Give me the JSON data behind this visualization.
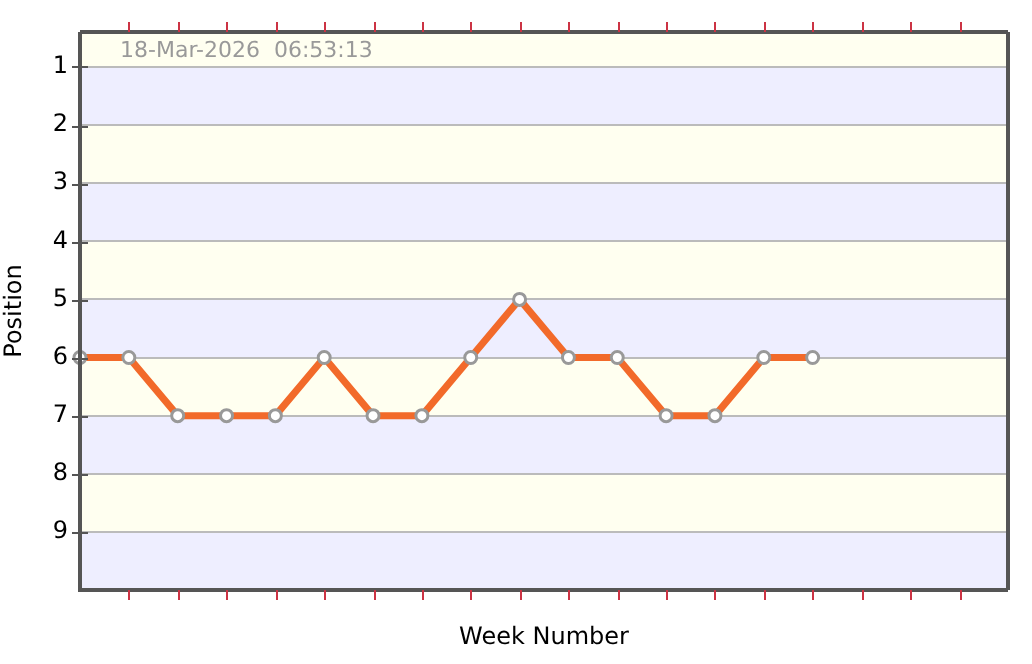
{
  "chart_data": {
    "type": "line",
    "xlabel": "Week Number",
    "ylabel": "Position",
    "annotations": [
      "18-Mar-2026  06:53:13"
    ],
    "categories": [
      null,
      null,
      null,
      null,
      null,
      null,
      null,
      null,
      null,
      null,
      null,
      null,
      null,
      null,
      null,
      null,
      null,
      null,
      null,
      null
    ],
    "series": [
      {
        "color": "#f26a2a",
        "values": [
          6,
          6,
          7,
          7,
          7,
          6,
          7,
          7,
          6,
          5,
          6,
          6,
          7,
          7,
          6,
          6,
          null,
          null,
          null,
          null
        ]
      }
    ],
    "ylim": [
      10,
      0.4
    ],
    "yticks": [
      1,
      2,
      3,
      4,
      5,
      6,
      7,
      8,
      9
    ],
    "tick_labels": "y",
    "grid": "y",
    "legend": false,
    "marker": "circle",
    "line_style": "solid",
    "bands": [
      {
        "axis": "y",
        "from": 0.4,
        "to": 1,
        "color": "#fffff0"
      },
      {
        "axis": "y",
        "from": 1,
        "to": 2,
        "color": "#eeeeff"
      },
      {
        "axis": "y",
        "from": 2,
        "to": 3,
        "color": "#fffff0"
      },
      {
        "axis": "y",
        "from": 3,
        "to": 4,
        "color": "#eeeeff"
      },
      {
        "axis": "y",
        "from": 4,
        "to": 5,
        "color": "#fffff0"
      },
      {
        "axis": "y",
        "from": 5,
        "to": 6,
        "color": "#eeeeff"
      },
      {
        "axis": "y",
        "from": 6,
        "to": 7,
        "color": "#fffff0"
      },
      {
        "axis": "y",
        "from": 7,
        "to": 8,
        "color": "#eeeeff"
      },
      {
        "axis": "y",
        "from": 8,
        "to": 9,
        "color": "#fffff0"
      },
      {
        "axis": "y",
        "from": 9,
        "to": 10,
        "color": "#eeeeff"
      }
    ]
  }
}
